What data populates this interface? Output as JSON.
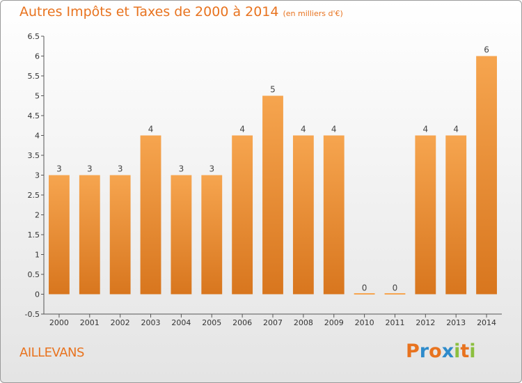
{
  "header": {
    "title": "Autres Impôts et Taxes de 2000 à 2014",
    "unit": "(en milliers d'€)"
  },
  "footer": {
    "commune": "AILLEVANS",
    "logo": "Proxiti"
  },
  "colors": {
    "accent": "#e8731f",
    "bar_light": "#f6a54f",
    "bar_dark": "#d8761e",
    "logo_letters": [
      "#e8731f",
      "#2e8bcb",
      "#e8731f",
      "#2e8bcb",
      "#8cbf3f",
      "#e8731f",
      "#8cbf3f"
    ]
  },
  "chart_data": {
    "type": "bar",
    "title": "Autres Impôts et Taxes de 2000 à 2014",
    "subtitle": "(en milliers d'€)",
    "categories": [
      "2000",
      "2001",
      "2002",
      "2003",
      "2004",
      "2005",
      "2006",
      "2007",
      "2008",
      "2009",
      "2010",
      "2011",
      "2012",
      "2013",
      "2014"
    ],
    "values": [
      3,
      3,
      3,
      4,
      3,
      3,
      4,
      5,
      4,
      4,
      0,
      0,
      4,
      4,
      6
    ],
    "ylim": [
      -0.5,
      6.5
    ],
    "yticks": [
      "-0.5",
      "0",
      "0.5",
      "1",
      "1.5",
      "2",
      "2.5",
      "3",
      "3.5",
      "4",
      "4.5",
      "5",
      "5.5",
      "6",
      "6.5"
    ],
    "grid": false,
    "legend": "none"
  }
}
